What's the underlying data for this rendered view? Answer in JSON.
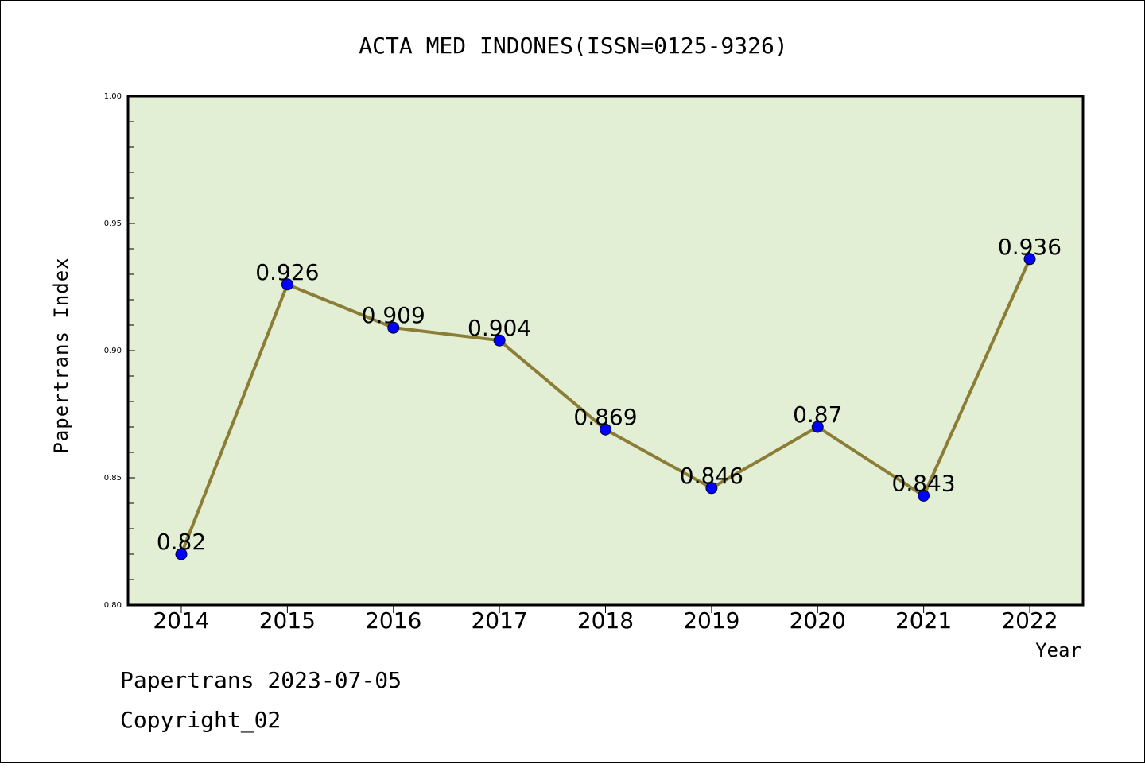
{
  "footer": {
    "line1": "Papertrans 2023-07-05",
    "line2": "Copyright_02"
  },
  "colors": {
    "plot_background": "#e2efd5",
    "line": "#8b7d36",
    "marker": "#0000ff",
    "axis": "#000000"
  },
  "chart_data": {
    "type": "line",
    "title": "ACTA MED INDONES(ISSN=0125-9326)",
    "xlabel": "Year",
    "ylabel": "Papertrans Index",
    "categories": [
      "2014",
      "2015",
      "2016",
      "2017",
      "2018",
      "2019",
      "2020",
      "2021",
      "2022"
    ],
    "values": [
      0.82,
      0.926,
      0.909,
      0.904,
      0.869,
      0.846,
      0.87,
      0.843,
      0.936
    ],
    "data_labels": [
      "0.82",
      "0.926",
      "0.909",
      "0.904",
      "0.869",
      "0.846",
      "0.87",
      "0.843",
      "0.936"
    ],
    "ylim": [
      0.8,
      1.0
    ],
    "yticks": [
      "0.80",
      "0.85",
      "0.90",
      "0.95",
      "1.00"
    ],
    "grid": false,
    "legend": "none"
  }
}
